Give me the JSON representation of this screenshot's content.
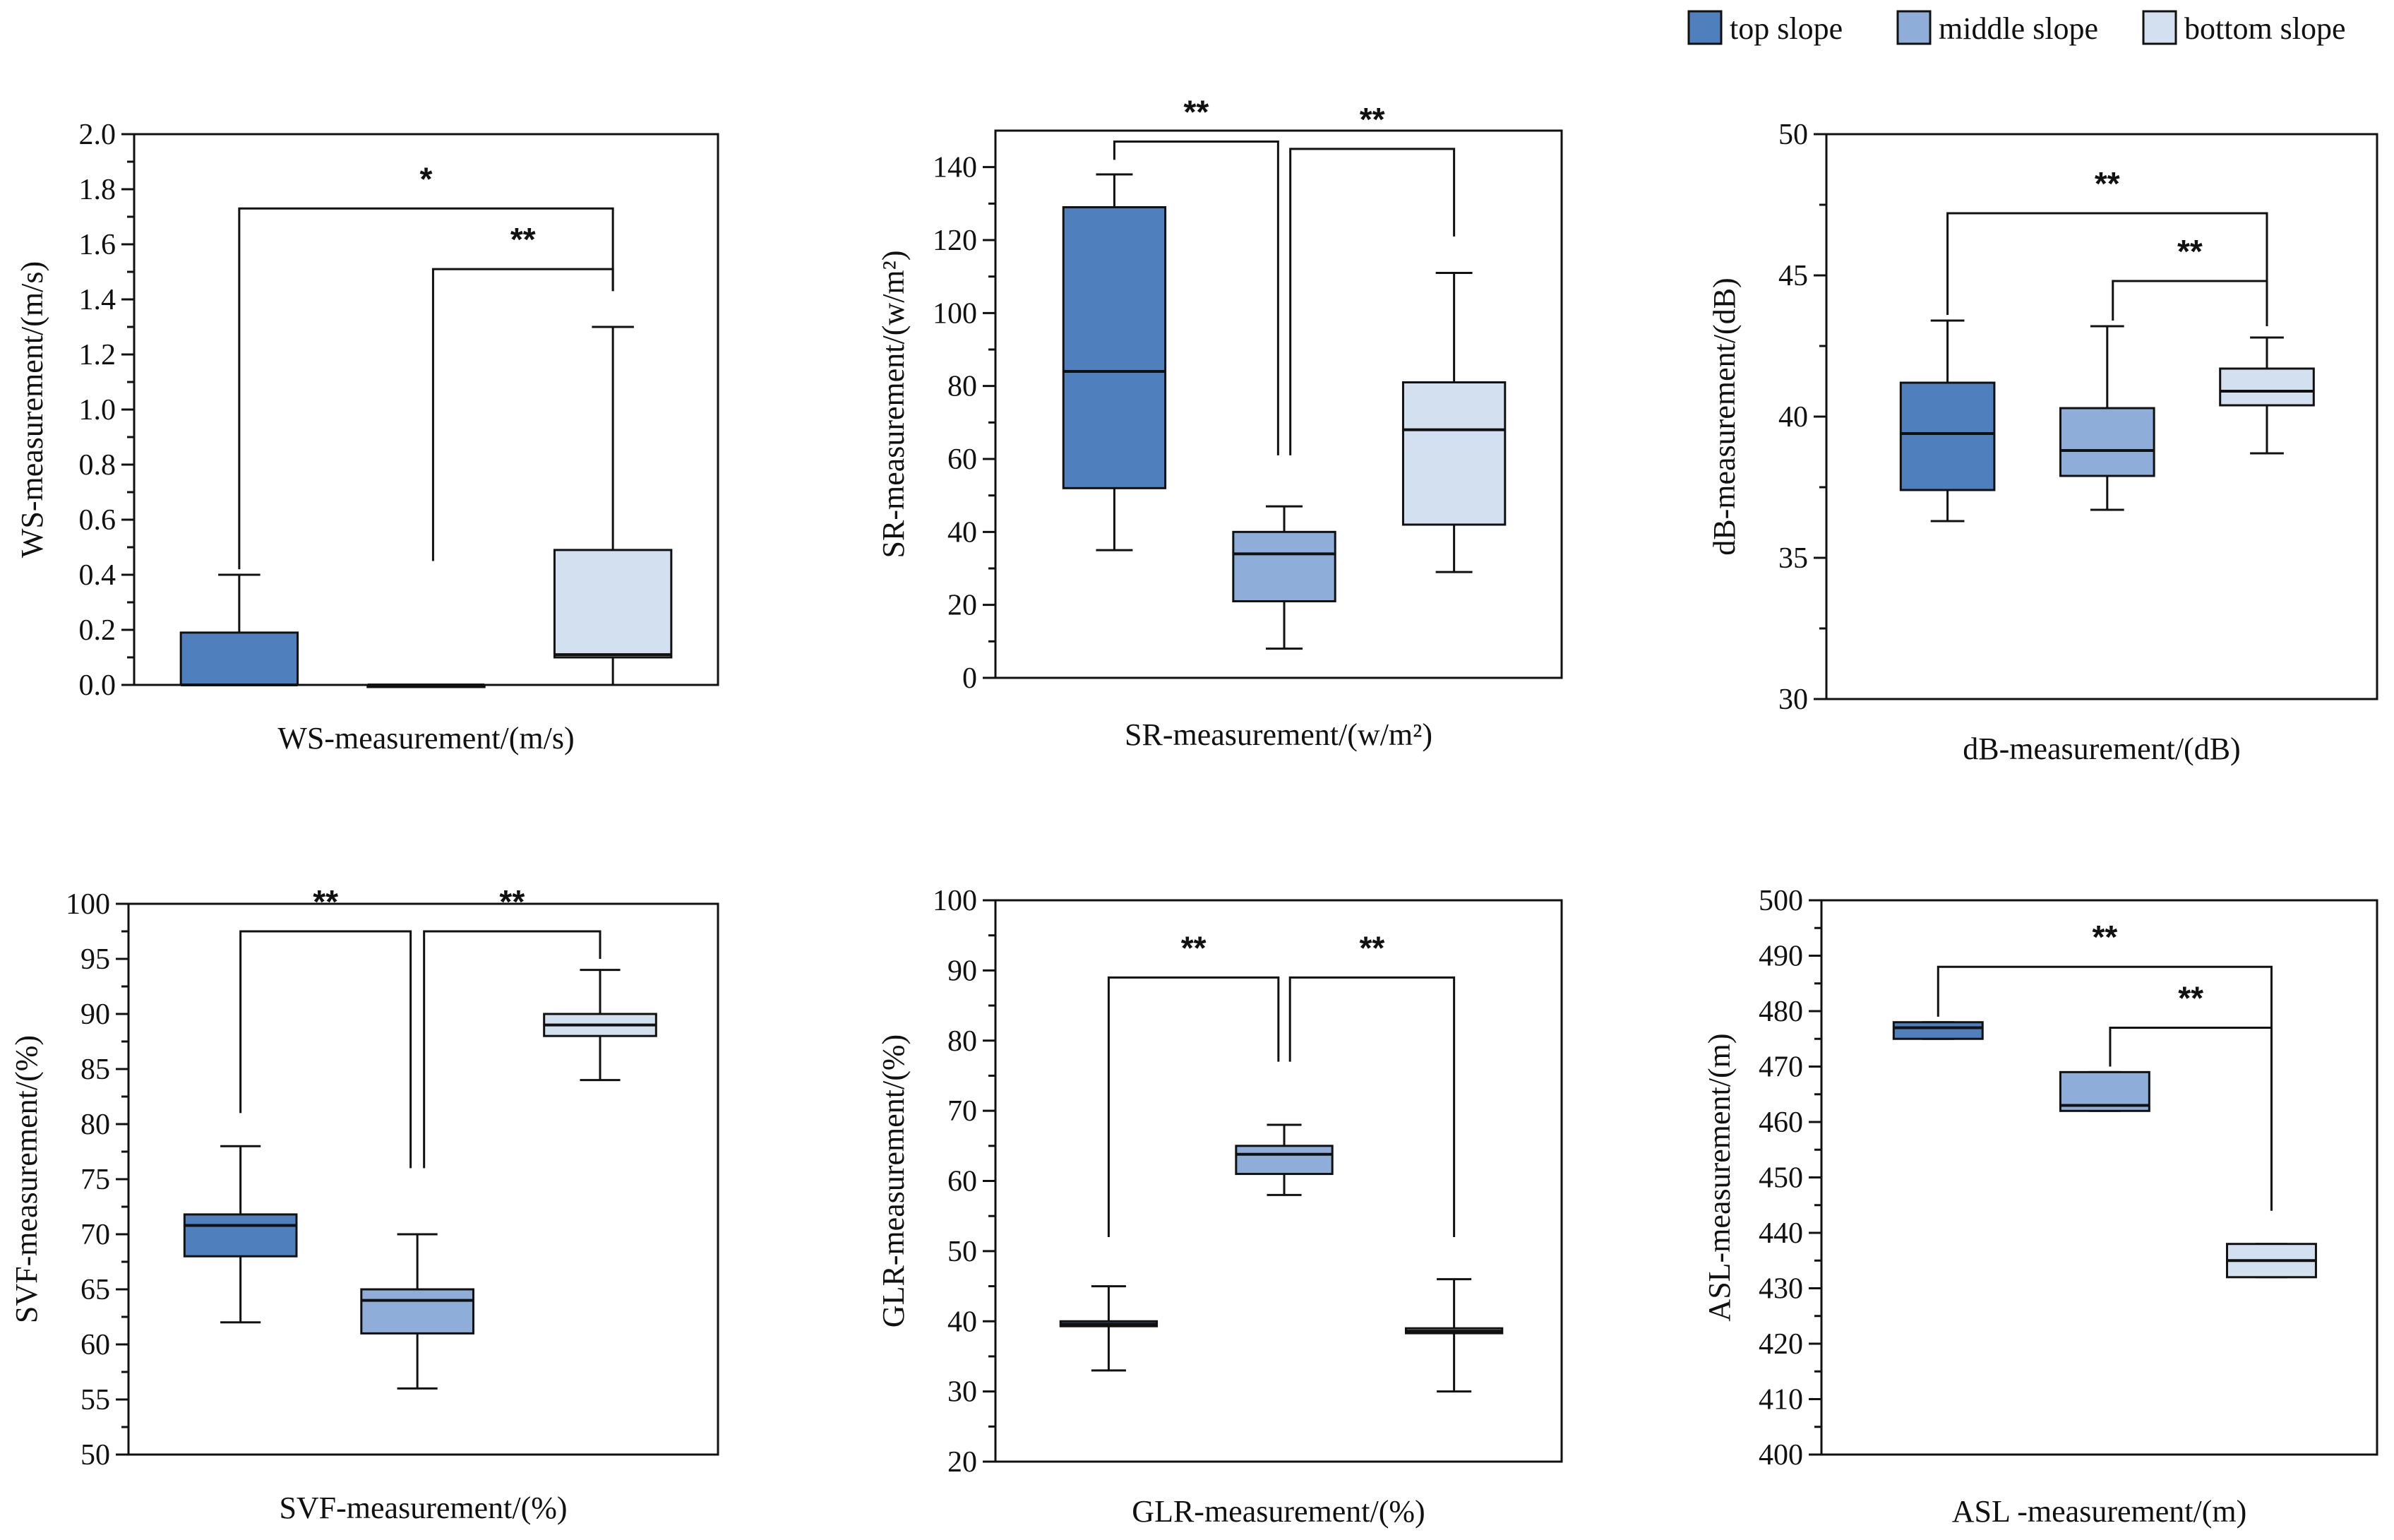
{
  "legend": {
    "items": [
      {
        "label": "top slope",
        "color": "#4f80bd"
      },
      {
        "label": "middle slope",
        "color": "#8eadd9"
      },
      {
        "label": "bottom slope",
        "color": "#d3e0ef"
      }
    ]
  },
  "chart_data": [
    {
      "type": "box",
      "ylabel": "WS-measurement/(m/s)",
      "xlabel": "WS-measurement/(m/s)",
      "ylim": [
        0,
        2.0
      ],
      "yticks": [
        "0.0",
        "0.2",
        "0.4",
        "0.6",
        "0.8",
        "1.0",
        "1.2",
        "1.4",
        "1.6",
        "1.8",
        "2.0"
      ],
      "series": [
        {
          "name": "top slope",
          "min": 0,
          "q1": 0,
          "median": 0,
          "q3": 0.19,
          "max": 0.4
        },
        {
          "name": "middle slope",
          "min": 0,
          "q1": 0,
          "median": 0,
          "q3": 0,
          "max": 0
        },
        {
          "name": "bottom slope",
          "min": 0,
          "q1": 0.1,
          "median": 0.11,
          "q3": 0.49,
          "max": 1.3
        }
      ],
      "significance": [
        {
          "from": 0,
          "to": 2,
          "label": "*",
          "bar_y": 1.73,
          "left_drop": 0.42,
          "right_drop": 1.43
        },
        {
          "from": 1,
          "to": 2,
          "label": "**",
          "bar_y": 1.51,
          "left_drop": 0.45,
          "right_drop": 1.43
        }
      ]
    },
    {
      "type": "box",
      "ylabel": "SR-measurement/(w/m²)",
      "xlabel": "SR-measurement/(w/m²)",
      "ylim": [
        0,
        150
      ],
      "yticks": [
        "0",
        "20",
        "40",
        "60",
        "80",
        "100",
        "120",
        "140"
      ],
      "series": [
        {
          "name": "top slope",
          "min": 35,
          "q1": 52,
          "median": 84,
          "q3": 129,
          "max": 138
        },
        {
          "name": "middle slope",
          "min": 8,
          "q1": 21,
          "median": 34,
          "q3": 40,
          "max": 47
        },
        {
          "name": "bottom slope",
          "min": 29,
          "q1": 42,
          "median": 68,
          "q3": 81,
          "max": 111
        }
      ],
      "significance": [
        {
          "from": 0,
          "to": 1,
          "label": "**",
          "bar_y": 147,
          "left_drop": 142,
          "right_drop": 61
        },
        {
          "from": 1,
          "to": 2,
          "label": "**",
          "bar_y": 145,
          "left_drop": 61,
          "right_drop": 121
        }
      ]
    },
    {
      "type": "box",
      "ylabel": "dB-measurement/(dB)",
      "xlabel": "dB-measurement/(dB)",
      "ylim": [
        30,
        50
      ],
      "yticks": [
        "30",
        "35",
        "40",
        "45",
        "50"
      ],
      "series": [
        {
          "name": "top slope",
          "min": 36.3,
          "q1": 37.4,
          "median": 39.4,
          "q3": 41.2,
          "max": 43.4
        },
        {
          "name": "middle slope",
          "min": 36.7,
          "q1": 37.9,
          "median": 38.8,
          "q3": 40.3,
          "max": 43.2
        },
        {
          "name": "bottom slope",
          "min": 38.7,
          "q1": 40.4,
          "median": 40.9,
          "q3": 41.7,
          "max": 42.8
        }
      ],
      "significance": [
        {
          "from": 0,
          "to": 2,
          "label": "**",
          "bar_y": 47.2,
          "left_drop": 43.6,
          "right_drop": 44.3
        },
        {
          "from": 1,
          "to": 2,
          "label": "**",
          "bar_y": 44.8,
          "left_drop": 43.4,
          "right_drop": 43.2
        }
      ]
    },
    {
      "type": "box",
      "ylabel": "SVF-measurement/(%)",
      "xlabel": "SVF-measurement/(%)",
      "ylim": [
        50,
        100
      ],
      "yticks": [
        "50",
        "55",
        "60",
        "65",
        "70",
        "75",
        "80",
        "85",
        "90",
        "95",
        "100"
      ],
      "series": [
        {
          "name": "top slope",
          "min": 62,
          "q1": 68,
          "median": 70.8,
          "q3": 71.8,
          "max": 78
        },
        {
          "name": "middle slope",
          "min": 56,
          "q1": 61,
          "median": 64,
          "q3": 65,
          "max": 70
        },
        {
          "name": "bottom slope",
          "min": 84,
          "q1": 88,
          "median": 89,
          "q3": 90,
          "max": 94
        }
      ],
      "significance": [
        {
          "from": 0,
          "to": 1,
          "label": "**",
          "bar_y": 97.5,
          "left_drop": 81,
          "right_drop": 76
        },
        {
          "from": 1,
          "to": 2,
          "label": "**",
          "bar_y": 97.5,
          "left_drop": 76,
          "right_drop": 95
        }
      ]
    },
    {
      "type": "box",
      "ylabel": "GLR-measurement/(%)",
      "xlabel": "GLR-measurement/(%)",
      "ylim": [
        20,
        100
      ],
      "yticks": [
        "20",
        "30",
        "40",
        "50",
        "60",
        "70",
        "80",
        "90",
        "100"
      ],
      "series": [
        {
          "name": "top slope",
          "min": 33,
          "q1": 39.3,
          "median": 39.6,
          "q3": 40.0,
          "max": 45
        },
        {
          "name": "middle slope",
          "min": 58,
          "q1": 61,
          "median": 63.8,
          "q3": 65,
          "max": 68
        },
        {
          "name": "bottom slope",
          "min": 30,
          "q1": 38.3,
          "median": 38.6,
          "q3": 39.0,
          "max": 46
        }
      ],
      "significance": [
        {
          "from": 0,
          "to": 1,
          "label": "**",
          "bar_y": 89,
          "left_drop": 52,
          "right_drop": 77
        },
        {
          "from": 1,
          "to": 2,
          "label": "**",
          "bar_y": 89,
          "left_drop": 77,
          "right_drop": 52
        }
      ]
    },
    {
      "type": "box",
      "ylabel": "ASL-measurement/(m)",
      "xlabel": "ASL -measurement/(m)",
      "ylim": [
        400,
        500
      ],
      "yticks": [
        "400",
        "410",
        "420",
        "430",
        "440",
        "450",
        "460",
        "470",
        "480",
        "490",
        "500"
      ],
      "series": [
        {
          "name": "top slope",
          "min": 475,
          "q1": 475,
          "median": 477,
          "q3": 478,
          "max": 478
        },
        {
          "name": "middle slope",
          "min": 462,
          "q1": 462,
          "median": 463,
          "q3": 469,
          "max": 469
        },
        {
          "name": "bottom slope",
          "min": 432,
          "q1": 432,
          "median": 435,
          "q3": 438,
          "max": 438
        }
      ],
      "significance": [
        {
          "from": 0,
          "to": 2,
          "label": "**",
          "bar_y": 488,
          "left_drop": 479,
          "right_drop": 444
        },
        {
          "from": 1,
          "to": 2,
          "label": "**",
          "bar_y": 477,
          "left_drop": 470,
          "right_drop": 444
        }
      ]
    }
  ]
}
